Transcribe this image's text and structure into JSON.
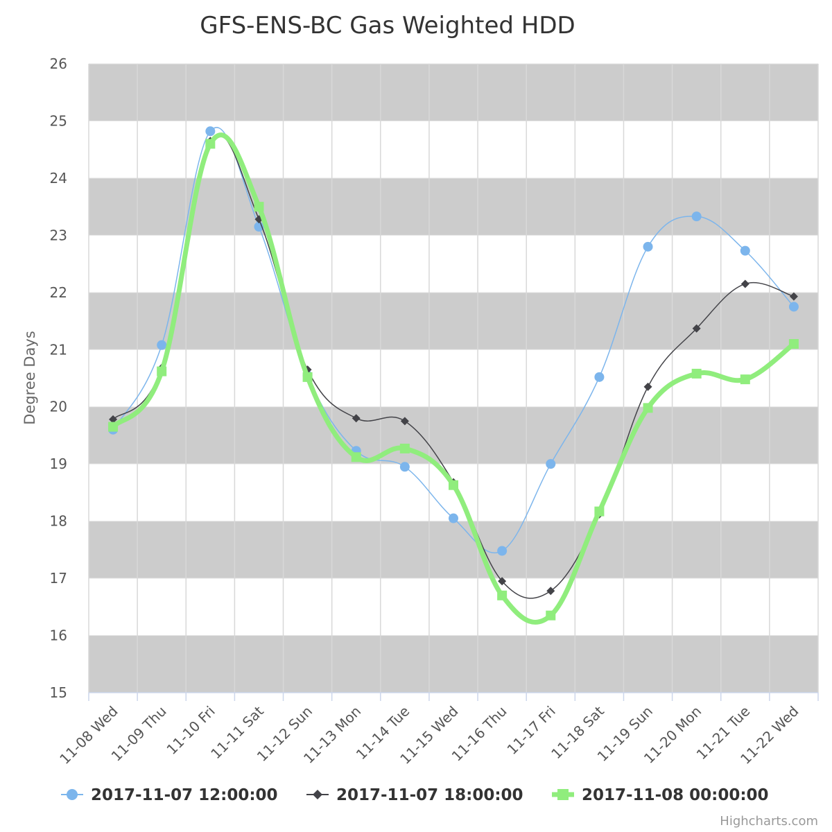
{
  "chart_data": {
    "type": "line",
    "title": "GFS-ENS-BC Gas Weighted HDD",
    "ylabel": "Degree Days",
    "xlabel": "",
    "ylim": [
      15,
      26
    ],
    "yticks": [
      15,
      16,
      17,
      18,
      19,
      20,
      21,
      22,
      23,
      24,
      25,
      26
    ],
    "categories": [
      "11-08 Wed",
      "11-09 Thu",
      "11-10 Fri",
      "11-11 Sat",
      "11-12 Sun",
      "11-13 Mon",
      "11-14 Tue",
      "11-15 Wed",
      "11-16 Thu",
      "11-17 Fri",
      "11-18 Sat",
      "11-19 Sun",
      "11-20 Mon",
      "11-21 Tue",
      "11-22 Wed"
    ],
    "grid": true,
    "alternate_bands": true,
    "legend_position": "bottom",
    "series": [
      {
        "name": "2017-11-07 12:00:00",
        "color": "#7cb5ec",
        "marker": "circle",
        "values": [
          19.6,
          21.08,
          24.82,
          23.15,
          20.55,
          19.23,
          18.95,
          18.05,
          17.48,
          19.0,
          20.52,
          22.8,
          23.33,
          22.73,
          21.75
        ]
      },
      {
        "name": "2017-11-07 18:00:00",
        "color": "#434348",
        "marker": "diamond",
        "values": [
          19.78,
          20.68,
          24.65,
          23.28,
          20.65,
          19.8,
          19.75,
          18.68,
          16.95,
          16.78,
          18.12,
          20.35,
          21.37,
          22.15,
          21.93
        ]
      },
      {
        "name": "2017-11-08 00:00:00",
        "color": "#90ed7d",
        "marker": "square",
        "values": [
          19.65,
          20.62,
          24.6,
          23.5,
          20.52,
          19.12,
          19.27,
          18.63,
          16.7,
          16.35,
          18.17,
          19.98,
          20.58,
          20.48,
          21.1
        ]
      }
    ]
  },
  "credit": "Highcharts.com"
}
